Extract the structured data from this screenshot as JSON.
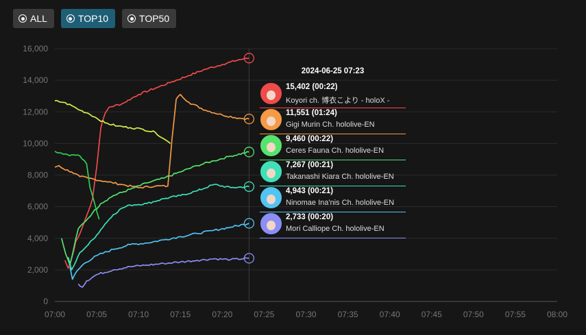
{
  "filters": [
    {
      "label": "ALL",
      "active": false
    },
    {
      "label": "TOP10",
      "active": true
    },
    {
      "label": "TOP50",
      "active": false
    }
  ],
  "chart_data": {
    "type": "line",
    "title": "",
    "xlabel": "",
    "ylabel": "",
    "x_unit": "minutes after 07:00",
    "xlim": [
      0,
      60
    ],
    "ylim": [
      0,
      16000
    ],
    "x_ticks": [
      {
        "v": 0,
        "label": "07:00"
      },
      {
        "v": 5,
        "label": "07:05"
      },
      {
        "v": 10,
        "label": "07:10"
      },
      {
        "v": 15,
        "label": "07:15"
      },
      {
        "v": 20,
        "label": "07:20"
      },
      {
        "v": 25,
        "label": "07:25"
      },
      {
        "v": 30,
        "label": "07:30"
      },
      {
        "v": 35,
        "label": "07:35"
      },
      {
        "v": 40,
        "label": "07:40"
      },
      {
        "v": 45,
        "label": "07:45"
      },
      {
        "v": 50,
        "label": "07:50"
      },
      {
        "v": 55,
        "label": "07:55"
      },
      {
        "v": 60,
        "label": "08:00"
      }
    ],
    "y_ticks": [
      {
        "v": 0,
        "label": "0"
      },
      {
        "v": 2000,
        "label": "2,000"
      },
      {
        "v": 4000,
        "label": "4,000"
      },
      {
        "v": 6000,
        "label": "6,000"
      },
      {
        "v": 8000,
        "label": "8,000"
      },
      {
        "v": 10000,
        "label": "10,000"
      },
      {
        "v": 12000,
        "label": "12,000"
      },
      {
        "v": 14000,
        "label": "14,000"
      },
      {
        "v": 16000,
        "label": "16,000"
      }
    ],
    "cursor_x": 23.2,
    "tooltip_time": "2024-06-25 07:23",
    "series": [
      {
        "name": "Koyori ch. 博衣こより - holoX -",
        "value_label": "15,402 (00:22)",
        "color": "#ef4b4b",
        "points": [
          [
            1.2,
            2600
          ],
          [
            1.6,
            2100
          ],
          [
            2.0,
            2700
          ],
          [
            2.5,
            3800
          ],
          [
            3.0,
            4300
          ],
          [
            3.5,
            5000
          ],
          [
            4.0,
            5700
          ],
          [
            4.5,
            6500
          ],
          [
            5.0,
            8500
          ],
          [
            5.5,
            11000
          ],
          [
            6.0,
            11900
          ],
          [
            6.5,
            12300
          ],
          [
            8.0,
            12500
          ],
          [
            10.0,
            13100
          ],
          [
            12.0,
            13500
          ],
          [
            14.0,
            13900
          ],
          [
            16.0,
            14300
          ],
          [
            18.0,
            14700
          ],
          [
            20.0,
            15000
          ],
          [
            22.0,
            15300
          ],
          [
            23.2,
            15402
          ]
        ]
      },
      {
        "name": "Gigi Murin Ch. hololive-EN",
        "value_label": "11,551 (01:24)",
        "color": "#f59a45",
        "points": [
          [
            0.0,
            8500
          ],
          [
            0.5,
            8600
          ],
          [
            1.0,
            8400
          ],
          [
            2.0,
            8200
          ],
          [
            3.0,
            7900
          ],
          [
            4.0,
            7800
          ],
          [
            6.0,
            7600
          ],
          [
            8.0,
            7400
          ],
          [
            10.0,
            7200
          ],
          [
            12.0,
            7300
          ],
          [
            13.5,
            7300
          ],
          [
            14.0,
            10300
          ],
          [
            14.5,
            12800
          ],
          [
            15.0,
            13100
          ],
          [
            16.0,
            12600
          ],
          [
            18.0,
            12100
          ],
          [
            20.0,
            11800
          ],
          [
            22.0,
            11600
          ],
          [
            23.2,
            11551
          ]
        ]
      },
      {
        "name": "Ceres Fauna Ch. hololive-EN",
        "value_label": "9,460 (00:22)",
        "color": "#55e36e",
        "points": [
          [
            0.8,
            4000
          ],
          [
            1.3,
            3000
          ],
          [
            1.8,
            2300
          ],
          [
            2.2,
            3200
          ],
          [
            2.8,
            4600
          ],
          [
            3.5,
            5000
          ],
          [
            4.5,
            5600
          ],
          [
            5.5,
            6200
          ],
          [
            7.0,
            6700
          ],
          [
            9.0,
            7100
          ],
          [
            11.0,
            7500
          ],
          [
            13.0,
            7800
          ],
          [
            15.0,
            8200
          ],
          [
            17.0,
            8600
          ],
          [
            19.0,
            8900
          ],
          [
            21.0,
            9200
          ],
          [
            23.2,
            9460
          ]
        ]
      },
      {
        "name": "Takanashi Kiara Ch. hololive-EN",
        "value_label": "7,267 (00:21)",
        "color": "#3fe0b8",
        "points": [
          [
            1.6,
            2800
          ],
          [
            2.0,
            2000
          ],
          [
            2.5,
            2500
          ],
          [
            3.0,
            3100
          ],
          [
            4.0,
            3600
          ],
          [
            5.0,
            4200
          ],
          [
            6.0,
            4900
          ],
          [
            7.0,
            5500
          ],
          [
            8.0,
            5900
          ],
          [
            9.0,
            6100
          ],
          [
            11.0,
            6200
          ],
          [
            13.0,
            6500
          ],
          [
            15.0,
            6700
          ],
          [
            17.0,
            7000
          ],
          [
            19.0,
            7400
          ],
          [
            21.0,
            7200
          ],
          [
            23.2,
            7267
          ]
        ]
      },
      {
        "name": "Ninomae Ina'nis Ch. hololive-EN",
        "value_label": "4,943 (00:21)",
        "color": "#52c4f2",
        "points": [
          [
            1.8,
            2200
          ],
          [
            2.1,
            1400
          ],
          [
            2.6,
            1900
          ],
          [
            3.5,
            2400
          ],
          [
            5.0,
            2900
          ],
          [
            7.0,
            3300
          ],
          [
            9.0,
            3600
          ],
          [
            11.0,
            3700
          ],
          [
            13.0,
            3900
          ],
          [
            15.0,
            4100
          ],
          [
            17.0,
            4300
          ],
          [
            19.0,
            4500
          ],
          [
            21.0,
            4700
          ],
          [
            23.2,
            4943
          ]
        ]
      },
      {
        "name": "Mori Calliope Ch. hololive-EN",
        "value_label": "2,733 (00:20)",
        "color": "#8a8ef5",
        "points": [
          [
            2.8,
            1100
          ],
          [
            3.3,
            900
          ],
          [
            3.8,
            1300
          ],
          [
            5.0,
            1700
          ],
          [
            7.0,
            2000
          ],
          [
            9.0,
            2200
          ],
          [
            11.0,
            2300
          ],
          [
            13.0,
            2400
          ],
          [
            15.0,
            2500
          ],
          [
            17.0,
            2600
          ],
          [
            19.0,
            2700
          ],
          [
            21.0,
            2650
          ],
          [
            23.2,
            2733
          ]
        ]
      },
      {
        "name": "",
        "value_label": "",
        "color": "#d6ef4a",
        "points": [
          [
            0.0,
            12700
          ],
          [
            1.0,
            12600
          ],
          [
            2.0,
            12400
          ],
          [
            3.0,
            12100
          ],
          [
            4.0,
            11900
          ],
          [
            5.0,
            11600
          ],
          [
            6.0,
            11300
          ],
          [
            7.5,
            11100
          ],
          [
            9.0,
            11000
          ],
          [
            10.5,
            10900
          ],
          [
            12.0,
            10700
          ],
          [
            13.0,
            10300
          ],
          [
            13.8,
            10000
          ]
        ]
      },
      {
        "name": "",
        "value_label": "",
        "color": "#2fd055",
        "points": [
          [
            0.0,
            9500
          ],
          [
            1.5,
            9300
          ],
          [
            3.0,
            9200
          ],
          [
            3.8,
            8700
          ],
          [
            4.2,
            7200
          ],
          [
            4.6,
            6500
          ],
          [
            5.0,
            5700
          ],
          [
            5.3,
            5200
          ]
        ]
      }
    ]
  }
}
